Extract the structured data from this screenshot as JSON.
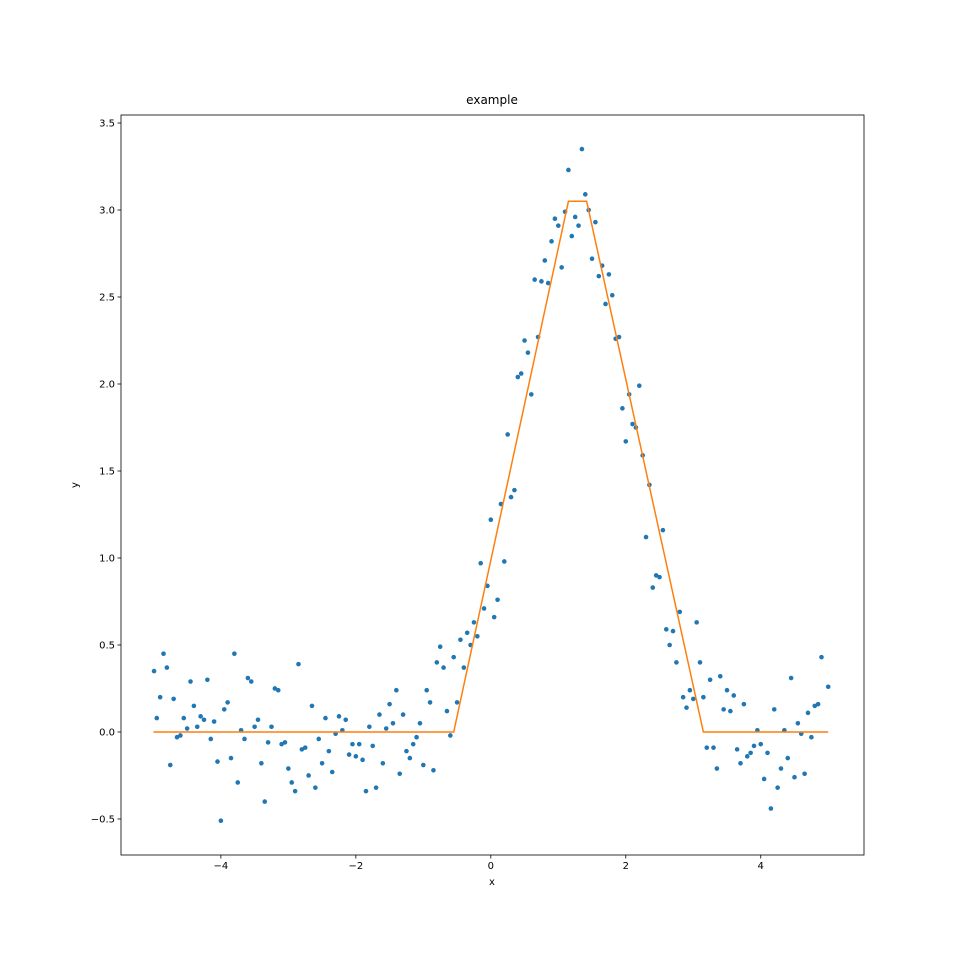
{
  "chart_data": {
    "type": "scatter",
    "title": "example",
    "x_label": "x",
    "y_label": "y",
    "xlim": [
      -5.48,
      5.53
    ],
    "ylim": [
      -0.707,
      3.546
    ],
    "xticks": [
      {
        "value": -4,
        "label": "−4"
      },
      {
        "value": -2,
        "label": "−2"
      },
      0,
      2,
      4
    ],
    "yticks": [
      {
        "value": -0.5,
        "label": "−0.5"
      },
      {
        "value": 0,
        "label": "0.0"
      },
      0.5,
      {
        "value": 1,
        "label": "1.0"
      },
      1.5,
      {
        "value": 2,
        "label": "2.0"
      },
      2.5,
      {
        "value": 3,
        "label": "3.0"
      },
      3.5
    ],
    "series": [
      {
        "type": "scatter",
        "color": "#1f77b4",
        "x": [
          -4.99,
          -4.95,
          -4.9,
          -4.85,
          -4.8,
          -4.75,
          -4.7,
          -4.65,
          -4.6,
          -4.55,
          -4.5,
          -4.45,
          -4.4,
          -4.35,
          -4.3,
          -4.25,
          -4.2,
          -4.15,
          -4.1,
          -4.05,
          -4,
          -3.95,
          -3.9,
          -3.85,
          -3.8,
          -3.75,
          -3.7,
          -3.65,
          -3.6,
          -3.55,
          -3.5,
          -3.45,
          -3.4,
          -3.35,
          -3.3,
          -3.25,
          -3.2,
          -3.15,
          -3.1,
          -3.05,
          -3,
          -2.95,
          -2.9,
          -2.85,
          -2.8,
          -2.75,
          -2.7,
          -2.65,
          -2.6,
          -2.55,
          -2.5,
          -2.45,
          -2.4,
          -2.35,
          -2.3,
          -2.25,
          -2.2,
          -2.15,
          -2.1,
          -2.05,
          -2,
          -1.95,
          -1.9,
          -1.85,
          -1.8,
          -1.75,
          -1.7,
          -1.65,
          -1.6,
          -1.55,
          -1.5,
          -1.45,
          -1.4,
          -1.35,
          -1.3,
          -1.25,
          -1.2,
          -1.15,
          -1.1,
          -1.05,
          -1,
          -0.95,
          -0.9,
          -0.85,
          -0.8,
          -0.75,
          -0.7,
          -0.65,
          -0.6,
          -0.55,
          -0.5,
          -0.45,
          -0.4,
          -0.35,
          -0.3,
          -0.25,
          -0.2,
          -0.15,
          -0.1,
          -0.05,
          0,
          0.05,
          0.1,
          0.15,
          0.2,
          0.25,
          0.3,
          0.35,
          0.4,
          0.45,
          0.5,
          0.55,
          0.6,
          0.65,
          0.7,
          0.75,
          0.8,
          0.85,
          0.9,
          0.95,
          1,
          1.05,
          1.1,
          1.15,
          1.2,
          1.25,
          1.3,
          1.35,
          1.4,
          1.45,
          1.5,
          1.55,
          1.6,
          1.65,
          1.7,
          1.75,
          1.8,
          1.85,
          1.9,
          1.95,
          2,
          2.05,
          2.1,
          2.15,
          2.2,
          2.25,
          2.3,
          2.35,
          2.4,
          2.45,
          2.5,
          2.55,
          2.6,
          2.65,
          2.7,
          2.75,
          2.8,
          2.85,
          2.9,
          2.95,
          3,
          3.05,
          3.1,
          3.15,
          3.2,
          3.25,
          3.3,
          3.35,
          3.4,
          3.45,
          3.5,
          3.55,
          3.6,
          3.65,
          3.7,
          3.75,
          3.8,
          3.85,
          3.9,
          3.95,
          4,
          4.05,
          4.1,
          4.15,
          4.2,
          4.25,
          4.3,
          4.35,
          4.4,
          4.45,
          4.5,
          4.55,
          4.6,
          4.65,
          4.7,
          4.75,
          4.8,
          4.85,
          4.9,
          5
        ],
        "y": [
          0.35,
          0.08,
          0.2,
          0.45,
          0.37,
          -0.19,
          0.19,
          -0.03,
          -0.02,
          0.08,
          0.02,
          0.29,
          0.15,
          0.03,
          0.09,
          0.07,
          0.3,
          -0.04,
          0.06,
          -0.17,
          -0.51,
          0.13,
          0.17,
          -0.15,
          0.45,
          -0.29,
          0.01,
          -0.04,
          0.31,
          0.29,
          0.03,
          0.07,
          -0.18,
          -0.4,
          -0.06,
          0.03,
          0.25,
          0.24,
          -0.07,
          -0.06,
          -0.21,
          -0.29,
          -0.34,
          0.39,
          -0.1,
          -0.09,
          -0.25,
          0.15,
          -0.32,
          -0.04,
          -0.18,
          0.08,
          -0.11,
          -0.23,
          -0.01,
          0.09,
          0.01,
          0.07,
          -0.13,
          -0.07,
          -0.14,
          -0.07,
          -0.16,
          -0.34,
          0.03,
          -0.08,
          -0.32,
          0.1,
          -0.18,
          0.02,
          0.16,
          0.05,
          0.24,
          -0.24,
          0.1,
          -0.11,
          -0.15,
          -0.07,
          -0.03,
          0.05,
          -0.19,
          0.24,
          0.17,
          -0.22,
          0.4,
          0.49,
          0.37,
          0.12,
          -0.02,
          0.43,
          0.17,
          0.53,
          0.37,
          0.57,
          0.5,
          0.63,
          0.55,
          0.97,
          0.71,
          0.84,
          1.22,
          0.66,
          0.76,
          1.31,
          0.98,
          1.71,
          1.35,
          1.39,
          2.04,
          2.06,
          2.25,
          2.18,
          1.94,
          2.6,
          2.27,
          2.59,
          2.71,
          2.58,
          2.82,
          2.95,
          2.91,
          2.67,
          2.99,
          3.23,
          2.85,
          2.96,
          2.91,
          3.35,
          3.09,
          3.0,
          2.72,
          2.93,
          2.62,
          2.68,
          2.46,
          2.63,
          2.51,
          2.26,
          2.27,
          1.86,
          1.67,
          1.94,
          1.77,
          1.75,
          1.99,
          1.59,
          1.12,
          1.42,
          0.83,
          0.9,
          0.89,
          1.16,
          0.59,
          0.5,
          0.58,
          0.4,
          0.69,
          0.2,
          0.14,
          0.24,
          0.19,
          0.63,
          0.4,
          0.2,
          -0.09,
          0.3,
          -0.09,
          -0.21,
          0.32,
          0.13,
          0.24,
          0.12,
          0.21,
          -0.1,
          -0.18,
          0.16,
          -0.14,
          -0.12,
          -0.08,
          0.01,
          -0.07,
          -0.27,
          -0.12,
          -0.44,
          0.13,
          -0.32,
          -0.21,
          0.01,
          -0.15,
          0.31,
          -0.26,
          0.05,
          -0.01,
          -0.24,
          0.11,
          -0.03,
          0.15,
          0.16,
          0.43,
          0.26
        ]
      },
      {
        "type": "line",
        "color": "#ff7f0e",
        "x": [
          -5,
          -0.55,
          1.15,
          1.42,
          3.15,
          5
        ],
        "y": [
          0,
          0,
          3.05,
          3.05,
          0,
          0
        ]
      }
    ]
  }
}
